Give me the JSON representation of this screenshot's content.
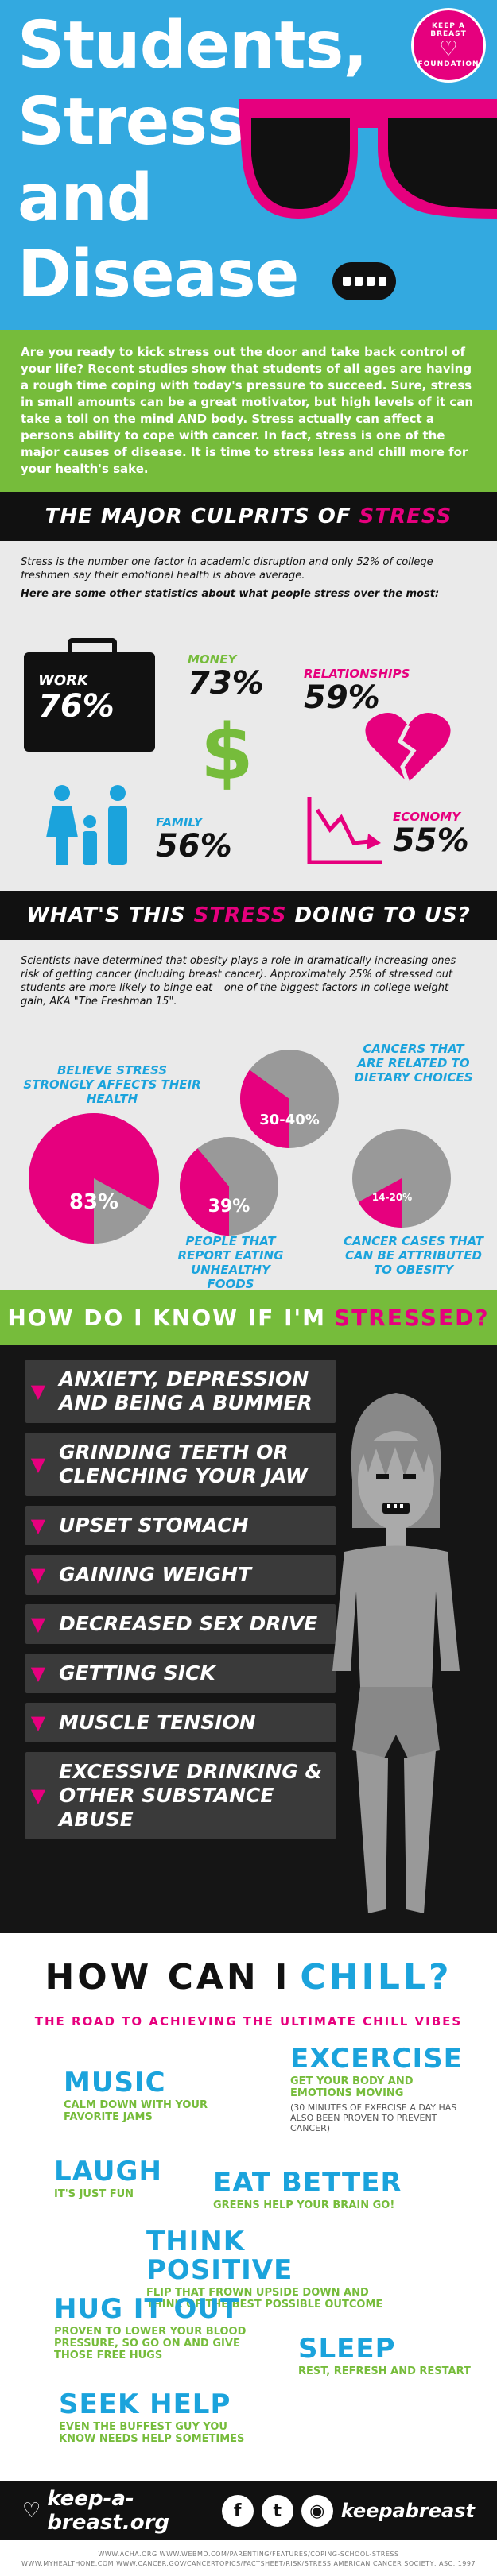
{
  "colors": {
    "blue": "#33a9e0",
    "green": "#76bc3b",
    "pink": "#e6007e",
    "black": "#111111",
    "gray": "#eaeaea"
  },
  "hero": {
    "title_lines": [
      "Students,",
      "Stress,",
      "and",
      "Disease"
    ],
    "logo_line1": "KEEP A BREAST",
    "logo_line2": "FOUNDATION"
  },
  "intro": "Are you ready to kick stress out the door and take back control of your life? Recent studies show that students of all ages are having a rough time coping with today's pressure to succeed. Sure, stress in small amounts can be a great motivator, but high levels of it can take a toll on the mind AND body. Stress actually can affect a persons ability to cope with cancer. In fact, stress is one of the major causes of disease. It is time to stress less and chill more for your health's sake.",
  "culprits": {
    "heading_a": "THE MAJOR CULPRITS OF",
    "heading_b": "STRESS",
    "lead1": "Stress is the number one factor in academic disruption and only 52% of college freshmen say their emotional health is above average.",
    "lead2": "Here are some other statistics about what people stress over the most:",
    "work_label": "WORK",
    "work_pct": "76%",
    "money_label": "MONEY",
    "money_pct": "73%",
    "relationships_label": "RELATIONSHIPS",
    "relationships_pct": "59%",
    "family_label": "FAMILY",
    "family_pct": "56%",
    "economy_label": "ECONOMY",
    "economy_pct": "55%"
  },
  "doing": {
    "heading_a": "WHAT'S THIS",
    "heading_b": "STRESS",
    "heading_c": "DOING TO US?",
    "lead": "Scientists have determined that obesity plays a role in dramatically increasing ones risk of getting cancer (including breast cancer). Approximately 25% of stressed out students are more likely to binge eat – one of the biggest factors in college weight gain, AKA \"The Freshman 15\".",
    "pies": [
      {
        "value": "83%",
        "fraction": 0.83,
        "caption": "BELIEVE STRESS STRONGLY AFFECTS THEIR HEALTH"
      },
      {
        "value": "30-40%",
        "fraction": 0.35,
        "caption": "CANCERS THAT ARE RELATED TO DIETARY CHOICES"
      },
      {
        "value": "39%",
        "fraction": 0.39,
        "caption": "PEOPLE THAT REPORT EATING UNHEALTHY FOODS"
      },
      {
        "value": "14-20%",
        "fraction": 0.17,
        "caption": "CANCER CASES THAT CAN BE ATTRIBUTED TO OBESITY"
      }
    ]
  },
  "know": {
    "heading_a": "HOW DO I KNOW IF I'M",
    "heading_b": "STRESSED?",
    "symptoms": [
      "ANXIETY, DEPRESSION AND BEING A BUMMER",
      "GRINDING TEETH OR CLENCHING YOUR JAW",
      "UPSET STOMACH",
      "GAINING WEIGHT",
      "DECREASED SEX DRIVE",
      "GETTING SICK",
      "MUSCLE TENSION",
      "EXCESSIVE DRINKING & OTHER SUBSTANCE ABUSE"
    ]
  },
  "chill": {
    "title_a": "HOW CAN I",
    "title_b": "CHILL?",
    "subtitle": "THE ROAD TO ACHIEVING THE ULTIMATE CHILL VIBES",
    "tips": {
      "music": {
        "h": "MUSIC",
        "d": "CALM DOWN WITH YOUR FAVORITE JAMS"
      },
      "excercise": {
        "h": "EXCERCISE",
        "d": "GET YOUR BODY AND EMOTIONS MOVING",
        "n": "(30 MINUTES OF EXERCISE A DAY HAS ALSO BEEN PROVEN TO PREVENT CANCER)"
      },
      "laugh": {
        "h": "LAUGH",
        "d": "IT'S JUST FUN"
      },
      "eat": {
        "h": "EAT BETTER",
        "d": "GREENS HELP YOUR BRAIN GO!"
      },
      "positive": {
        "h": "THINK POSITIVE",
        "d": "FLIP THAT FROWN UPSIDE DOWN AND THINK OF THE BEST POSSIBLE OUTCOME"
      },
      "hug": {
        "h": "HUG IT OUT",
        "d": "PROVEN TO LOWER YOUR BLOOD PRESSURE, SO GO ON AND GIVE THOSE FREE HUGS"
      },
      "sleep": {
        "h": "SLEEP",
        "d": "REST, REFRESH AND RESTART"
      },
      "help": {
        "h": "SEEK HELP",
        "d": "EVEN THE BUFFEST GUY YOU KNOW NEEDS HELP SOMETIMES"
      }
    }
  },
  "footer": {
    "site": "keep-a-breast.org",
    "handle": "keepabreast",
    "sources_line1": "WWW.ACHA.ORG     WWW.WEBMD.COM/PARENTING/FEATURES/COPING-SCHOOL-STRESS",
    "sources_line2": "WWW.MYHEALTHONE.COM     WWW.CANCER.GOV/CANCERTOPICS/FACTSHEET/RISK/STRESS     AMERICAN CANCER SOCIETY, ASC, 1997"
  }
}
